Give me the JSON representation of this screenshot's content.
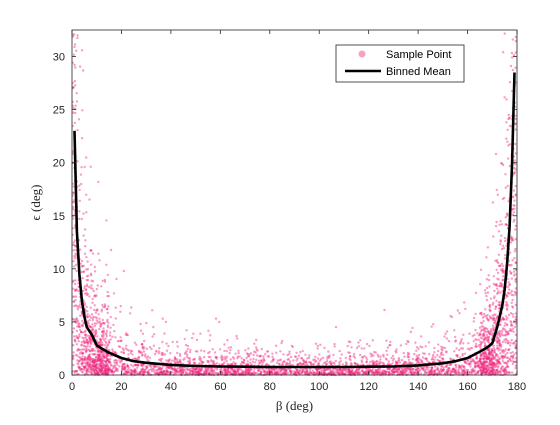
{
  "chart_data": {
    "type": "scatter",
    "title": "",
    "xlabel": "β (deg)",
    "ylabel": "ϵ (deg)",
    "xlim": [
      0,
      180
    ],
    "ylim": [
      0,
      32.5
    ],
    "xticks": [
      0,
      20,
      40,
      60,
      80,
      100,
      120,
      140,
      160,
      180
    ],
    "yticks": [
      0,
      5,
      10,
      15,
      20,
      25,
      30
    ],
    "xtick_labels": [
      "0",
      "20",
      "40",
      "60",
      "80",
      "100",
      "120",
      "140",
      "160",
      "180"
    ],
    "ytick_labels": [
      "0",
      "5",
      "10",
      "15",
      "20",
      "25",
      "30"
    ],
    "grid": false,
    "legend_position": "top-right",
    "series": [
      {
        "name": "Sample Point",
        "kind": "scatter",
        "color": "#f0287f",
        "description_points": "dense cloud of samples; spread largest near β=0 and β=180 deg"
      },
      {
        "name": "Binned Mean",
        "kind": "line",
        "color": "#000000",
        "x": [
          1,
          2,
          3,
          4,
          5,
          6,
          8,
          10,
          12,
          15,
          20,
          25,
          30,
          40,
          50,
          60,
          70,
          80,
          90,
          100,
          110,
          120,
          130,
          140,
          150,
          155,
          160,
          165,
          168,
          170,
          172,
          174,
          175,
          176,
          177,
          178,
          179
        ],
        "y": [
          23.0,
          13.5,
          9.5,
          7.0,
          5.5,
          4.5,
          3.8,
          2.8,
          2.5,
          2.1,
          1.6,
          1.3,
          1.15,
          0.95,
          0.85,
          0.8,
          0.78,
          0.75,
          0.75,
          0.75,
          0.75,
          0.78,
          0.8,
          0.9,
          1.1,
          1.3,
          1.6,
          2.2,
          2.6,
          3.0,
          4.5,
          6.5,
          8.0,
          10.5,
          14.0,
          20.0,
          28.5
        ]
      }
    ]
  },
  "legend": {
    "sample_label": "Sample Point",
    "mean_label": "Binned Mean"
  }
}
